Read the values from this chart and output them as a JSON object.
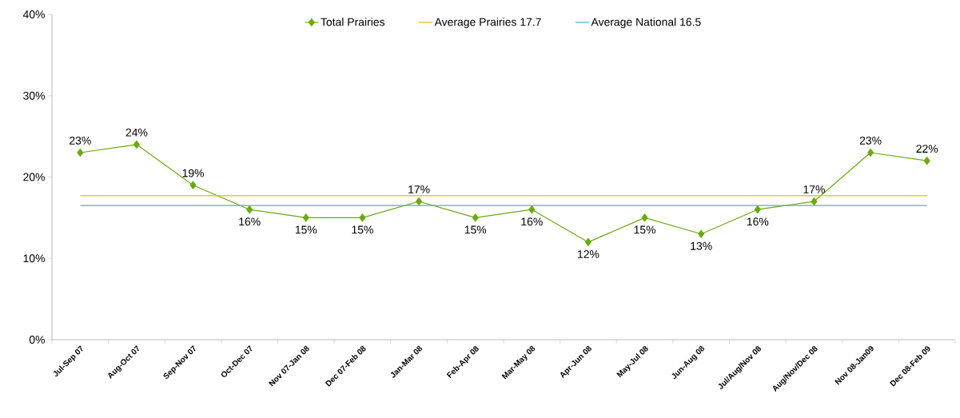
{
  "chart_data": {
    "type": "line",
    "categories": [
      "Jul-Sep 07",
      "Aug-Oct 07",
      "Sep-Nov 07",
      "Oct-Dec 07",
      "Nov 07-Jan 08",
      "Dec 07-Feb 08",
      "Jan-Mar 08",
      "Feb-Apr 08",
      "Mar-May 08",
      "Apr-Jun 08",
      "May-Jul 08",
      "Jun-Aug 08",
      "Jul/Aug/Nov 08",
      "Aug/Nov/Dec 08",
      "Nov 08-Jan09",
      "Dec 08-Feb 09"
    ],
    "series": [
      {
        "name": "Total Prairies",
        "color": "#6aaa10",
        "marker": "diamond",
        "values": [
          23,
          24,
          19,
          16,
          15,
          15,
          17,
          15,
          16,
          12,
          15,
          13,
          16,
          17,
          23,
          22
        ],
        "value_labels": [
          "23%",
          "24%",
          "19%",
          "16%",
          "15%",
          "15%",
          "17%",
          "15%",
          "16%",
          "12%",
          "15%",
          "13%",
          "16%",
          "17%",
          "23%",
          "22%"
        ]
      },
      {
        "name": "Average Prairies 17.7",
        "color": "#f5b400",
        "marker": "none",
        "values": [
          17.7,
          17.7,
          17.7,
          17.7,
          17.7,
          17.7,
          17.7,
          17.7,
          17.7,
          17.7,
          17.7,
          17.7,
          17.7,
          17.7,
          17.7,
          17.7
        ]
      },
      {
        "name": "Average National 16.5",
        "color": "#4aaee6",
        "marker": "none",
        "values": [
          16.5,
          16.5,
          16.5,
          16.5,
          16.5,
          16.5,
          16.5,
          16.5,
          16.5,
          16.5,
          16.5,
          16.5,
          16.5,
          16.5,
          16.5,
          16.5
        ]
      }
    ],
    "ylim": [
      0,
      40
    ],
    "yticks": [
      {
        "value": 0,
        "label": "0%"
      },
      {
        "value": 10,
        "label": "10%"
      },
      {
        "value": 20,
        "label": "20%"
      },
      {
        "value": 30,
        "label": "30%"
      },
      {
        "value": 40,
        "label": "40%"
      }
    ],
    "grid": false,
    "legend": "top"
  }
}
